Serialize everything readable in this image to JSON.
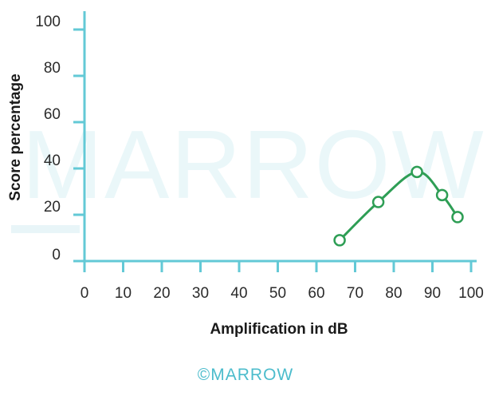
{
  "colors": {
    "axis": "#63c9d6",
    "series": "#2e9e55",
    "text": "#2b2b2b",
    "watermark": "#eaf7f9",
    "brand": "#4cbccc"
  },
  "watermark_text": "MARROW",
  "footer": {
    "text": "©MARROW"
  },
  "chart_data": {
    "type": "line",
    "title": "",
    "xlabel": "Amplification in dB",
    "ylabel": "Score percentage",
    "xlim": [
      0,
      100
    ],
    "ylim": [
      0,
      100
    ],
    "x_ticks": [
      0,
      10,
      20,
      30,
      40,
      50,
      60,
      70,
      80,
      90,
      100
    ],
    "y_ticks": [
      0,
      20,
      40,
      60,
      80,
      100
    ],
    "grid": false,
    "legend": "none",
    "marker": "open-circle",
    "smooth": true,
    "series": [
      {
        "x": [
          66,
          76,
          86,
          92.5,
          96.5
        ],
        "y": [
          9,
          25.5,
          38.5,
          28.5,
          19
        ]
      }
    ]
  }
}
